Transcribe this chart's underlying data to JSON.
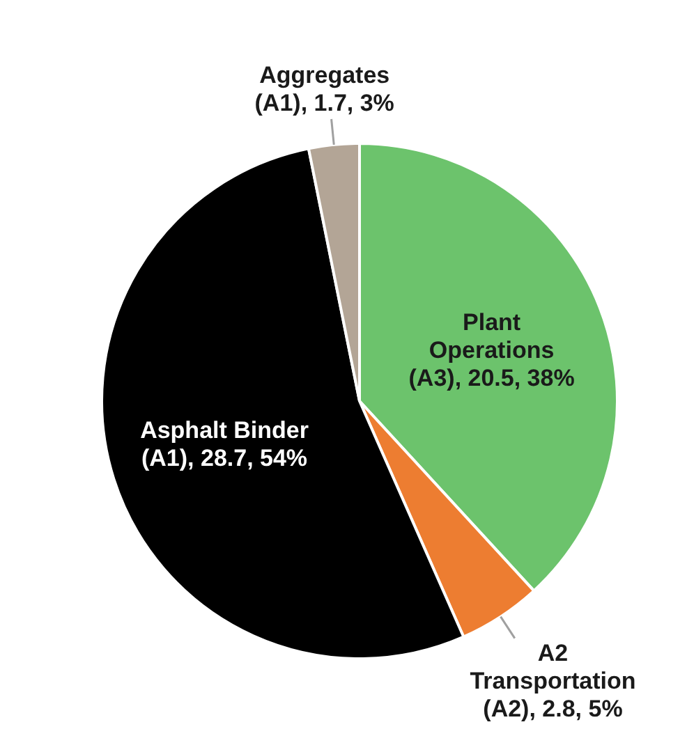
{
  "chart_data": {
    "type": "pie",
    "categories": [
      "Plant Operations",
      "A2 Transportation",
      "Asphalt Binder",
      "Aggregates"
    ],
    "values": [
      20.5,
      2.8,
      28.7,
      1.7
    ],
    "colors": [
      "#6cc36c",
      "#ed7d31",
      "#000000",
      "#b3a596"
    ],
    "value_labels": [
      "(A3), 20.5, 38%",
      "(A2), 2.8, 5%",
      "(A1), 28.7, 54%",
      "(A1), 1.7, 3%"
    ]
  }
}
